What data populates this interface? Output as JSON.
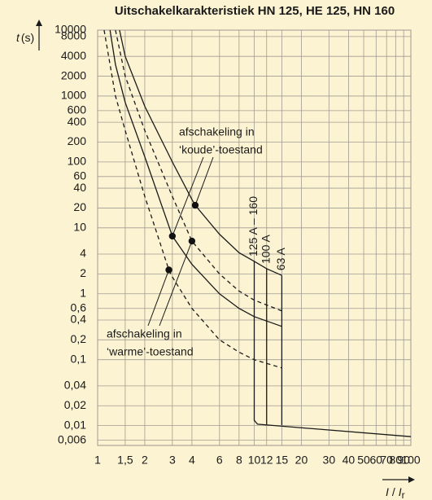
{
  "chart_data": {
    "type": "line",
    "title": "Uitschakelkarakteristiek HN 125, HE 125, HN 160",
    "ylabel": [
      "t",
      "(s)"
    ],
    "xlabel": [
      "I",
      "/",
      "I",
      "r"
    ],
    "log_x": true,
    "log_y": true,
    "grid": true,
    "xlim": [
      1,
      100
    ],
    "ylim": [
      0.005,
      10000
    ],
    "xticks": [
      1,
      {
        "value": 1.5,
        "label": "1,5"
      },
      2,
      3,
      4,
      6,
      8,
      10,
      12,
      15,
      20,
      30,
      40,
      50,
      60,
      70,
      80,
      90,
      100
    ],
    "yticks": [
      10000,
      8000,
      4000,
      2000,
      1000,
      600,
      400,
      200,
      100,
      60,
      40,
      20,
      10,
      4,
      2,
      1,
      {
        "value": 0.6,
        "label": "0,6"
      },
      {
        "value": 0.4,
        "label": "0,4"
      },
      {
        "value": 0.2,
        "label": "0,2"
      },
      {
        "value": 0.1,
        "label": "0,1"
      },
      {
        "value": 0.04,
        "label": "0,04"
      },
      {
        "value": 0.02,
        "label": "0,02"
      },
      {
        "value": 0.01,
        "label": "0,01"
      },
      {
        "value": 0.006,
        "label": "0,006"
      }
    ],
    "series": [
      {
        "color": "#1a1a1a",
        "style": "solid",
        "x": [
          1.38,
          1.5,
          2,
          3,
          4,
          4.2,
          6,
          8,
          10,
          12,
          15
        ],
        "values": [
          10000,
          4000,
          700,
          100,
          27,
          22,
          8,
          4.2,
          3.1,
          2.4,
          1.9
        ]
      },
      {
        "color": "#1a1a1a",
        "style": "dashed",
        "x": [
          1.3,
          1.5,
          2,
          3,
          4,
          6,
          8,
          10,
          15
        ],
        "values": [
          10000,
          2000,
          300,
          30,
          6.3,
          2,
          1.1,
          0.8,
          0.55
        ]
      },
      {
        "color": "#1a1a1a",
        "style": "solid",
        "x": [
          1.2,
          1.3,
          1.5,
          2,
          3,
          4,
          6,
          8,
          10,
          15
        ],
        "values": [
          10000,
          3000,
          800,
          120,
          7.5,
          2.8,
          1,
          0.6,
          0.45,
          0.32
        ]
      },
      {
        "color": "#1a1a1a",
        "style": "dashed",
        "x": [
          1.1,
          1.3,
          1.5,
          2,
          2.5,
          2.85,
          3,
          4,
          6,
          8,
          10,
          15
        ],
        "values": [
          10000,
          1000,
          300,
          30,
          6,
          2.3,
          1.8,
          0.6,
          0.2,
          0.13,
          0.1,
          0.075
        ]
      },
      {
        "color": "#1a1a1a",
        "style": "solid",
        "label": "125 A – 160",
        "x": [
          10,
          10,
          10.5,
          100
        ],
        "values": [
          3.1,
          0.012,
          0.0105,
          0.0068
        ]
      },
      {
        "color": "#1a1a1a",
        "style": "solid",
        "label": "100 A",
        "x": [
          12,
          12
        ],
        "values": [
          2.4,
          0.0104
        ]
      },
      {
        "color": "#1a1a1a",
        "style": "solid",
        "label": "63 A",
        "x": [
          15,
          15
        ],
        "values": [
          1.9,
          0.0102
        ]
      }
    ],
    "annotations": [
      {
        "lines": [
          "afschakeling in",
          "‘koude’-toestand"
        ],
        "points": {
          "x": [
            4.2,
            3
          ],
          "values": [
            22,
            7.5
          ]
        }
      },
      {
        "lines": [
          "afschakeling in",
          "‘warme’-toestand"
        ],
        "points": {
          "x": [
            2.85,
            4
          ],
          "values": [
            2.3,
            6.3
          ]
        }
      }
    ]
  }
}
